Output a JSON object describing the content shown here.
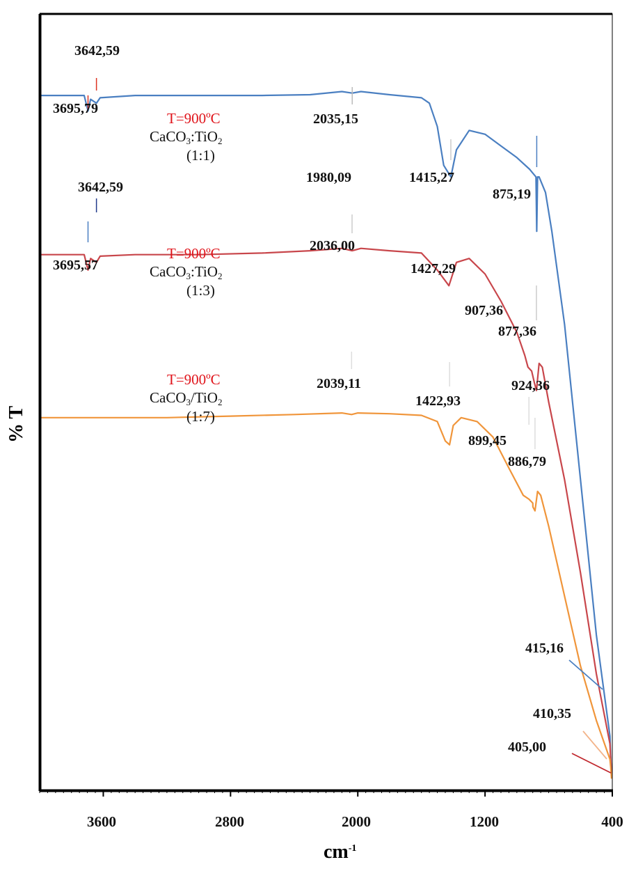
{
  "chart_data": {
    "type": "line",
    "title": "",
    "xlabel": "cm-1",
    "ylabel": "% T",
    "x_reversed": true,
    "xlim": [
      4000,
      400
    ],
    "x_ticks": [
      3600,
      2800,
      2000,
      1200,
      400
    ],
    "y_ticks": [],
    "grid": false,
    "legend": "inline annotations",
    "series": [
      {
        "name": "CaCO3:TiO2 (1:1), T=900°C",
        "color": "#4a7fc1",
        "x": [
          4000,
          3720,
          3696,
          3680,
          3643,
          3620,
          3400,
          3000,
          2600,
          2300,
          2100,
          2035,
          1980,
          1800,
          1600,
          1550,
          1500,
          1460,
          1415,
          1380,
          1300,
          1200,
          1100,
          1000,
          920,
          900,
          880,
          875,
          870,
          860,
          820,
          780,
          700,
          600,
          500,
          415,
          410,
          405
        ],
        "y": [
          89.5,
          89.5,
          87.5,
          89.0,
          88.5,
          89.2,
          89.5,
          89.5,
          89.5,
          89.6,
          90.0,
          89.8,
          90.0,
          89.6,
          89.2,
          88.5,
          85.5,
          80.5,
          79.0,
          82.5,
          85.0,
          84.5,
          83.0,
          81.5,
          80.0,
          79.5,
          79.0,
          72.0,
          79.0,
          79.0,
          77.0,
          72.0,
          60.0,
          40.0,
          20.0,
          7.0,
          4.0,
          2.0
        ]
      },
      {
        "name": "CaCO3:TiO2 (1:3), T=900°C",
        "color": "#c8464b",
        "x": [
          4000,
          3720,
          3696,
          3680,
          3643,
          3620,
          3400,
          3000,
          2600,
          2300,
          2100,
          2036,
          1980,
          1800,
          1600,
          1500,
          1427,
          1380,
          1300,
          1200,
          1100,
          1000,
          950,
          930,
          907,
          890,
          877,
          860,
          840,
          800,
          700,
          600,
          500,
          415,
          410,
          405
        ],
        "y": [
          69.0,
          69.0,
          67.0,
          68.5,
          68.0,
          68.8,
          69.0,
          69.0,
          69.2,
          69.5,
          69.8,
          69.5,
          69.8,
          69.5,
          69.2,
          67.0,
          65.0,
          68.0,
          68.5,
          66.5,
          63.0,
          59.0,
          56.0,
          54.5,
          54.0,
          52.5,
          51.5,
          55.0,
          54.5,
          50.0,
          40.0,
          28.0,
          15.0,
          6.0,
          4.0,
          2.0
        ]
      },
      {
        "name": "CaCO3/TiO2 (1:7), T=900°C",
        "color": "#f0953a",
        "x": [
          4000,
          3600,
          3200,
          2800,
          2400,
          2100,
          2039,
          2000,
          1800,
          1600,
          1500,
          1450,
          1423,
          1400,
          1350,
          1250,
          1150,
          1050,
          960,
          924,
          900,
          899,
          886,
          870,
          850,
          800,
          700,
          600,
          500,
          415,
          410,
          405
        ],
        "y": [
          48.0,
          48.0,
          48.0,
          48.2,
          48.4,
          48.6,
          48.4,
          48.6,
          48.5,
          48.3,
          47.5,
          45.0,
          44.5,
          47.0,
          48.0,
          47.5,
          45.5,
          41.5,
          38.0,
          37.5,
          37.0,
          36.5,
          36.0,
          38.5,
          38.0,
          34.0,
          25.0,
          16.0,
          9.0,
          4.0,
          3.0,
          1.5
        ]
      }
    ],
    "annotations": [
      {
        "text": "3642,59",
        "series": "1:1"
      },
      {
        "text": "3695,79",
        "series": "1:1"
      },
      {
        "text": "2035,15",
        "series": "1:1"
      },
      {
        "text": "1980,09",
        "series": "1:1/1:3"
      },
      {
        "text": "1415,27",
        "series": "1:1"
      },
      {
        "text": "875,19",
        "series": "1:1"
      },
      {
        "text": "3642,59",
        "series": "1:3"
      },
      {
        "text": "3695,57",
        "series": "1:3"
      },
      {
        "text": "2036,00",
        "series": "1:3"
      },
      {
        "text": "1427,29",
        "series": "1:3"
      },
      {
        "text": "907,36",
        "series": "1:3"
      },
      {
        "text": "877,36",
        "series": "1:3"
      },
      {
        "text": "2039,11",
        "series": "1:7"
      },
      {
        "text": "1422,93",
        "series": "1:7"
      },
      {
        "text": "924,36",
        "series": "1:7"
      },
      {
        "text": "899,45",
        "series": "1:7"
      },
      {
        "text": "886,79",
        "series": "1:7"
      },
      {
        "text": "415,16"
      },
      {
        "text": "410,35"
      },
      {
        "text": "405,00"
      }
    ]
  },
  "axes": {
    "x_label": "cm",
    "x_label_sup": "-1",
    "y_label": "% T",
    "x_ticks": [
      "3600",
      "2800",
      "2000",
      "1200",
      "400"
    ]
  },
  "samples": [
    {
      "temp": "T=900ºC",
      "name_a": "CaCO",
      "sub_a": "3",
      "sep": ":",
      "name_b": "TiO",
      "sub_b": "2",
      "ratio": "(1:1)"
    },
    {
      "temp": "T=900ºC",
      "name_a": "CaCO",
      "sub_a": "3",
      "sep": ":",
      "name_b": "TiO",
      "sub_b": "2",
      "ratio": "(1:3)"
    },
    {
      "temp": "T=900ºC",
      "name_a": "CaCO",
      "sub_a": "3",
      "sep": "/",
      "name_b": "TiO",
      "sub_b": "2",
      "ratio": "(1:7)"
    }
  ],
  "peaks": {
    "p1_3642": "3642,59",
    "p1_3695": "3695,79",
    "p1_2035": "2035,15",
    "p1_1980": "1980,09",
    "p1_1415": "1415,27",
    "p1_875": "875,19",
    "p2_3642": "3642,59",
    "p2_3695": "3695,57",
    "p2_2036": "2036,00",
    "p2_1427": "1427,29",
    "p2_907": "907,36",
    "p2_877": "877,36",
    "p3_2039": "2039,11",
    "p3_1422": "1422,93",
    "p3_924": "924,36",
    "p3_899": "899,45",
    "p3_886": "886,79",
    "p_415": "415,16",
    "p_410": "410,35",
    "p_405": "405,00"
  }
}
